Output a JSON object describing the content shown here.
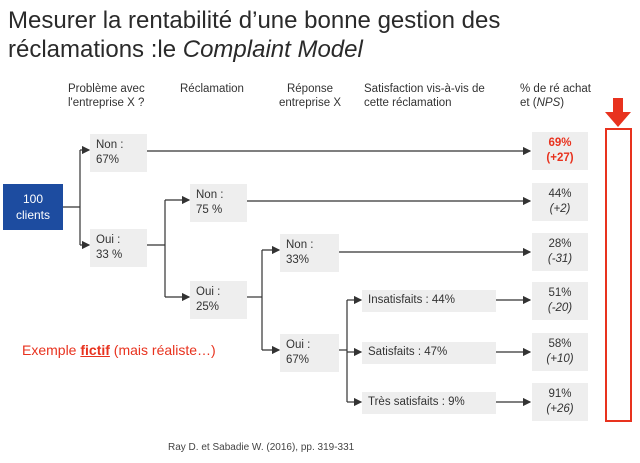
{
  "title": {
    "prefix": "Mesurer la rentabilité d’une bonne gestion des réclamations :le ",
    "emph": "Complaint Model"
  },
  "headers": {
    "probleme": "Problème avec l'entreprise X ?",
    "reclamation": "Réclamation",
    "reponse": "Réponse entreprise X",
    "satisfaction": "Satisfaction vis-à-vis de cette réclamation",
    "rachat_prefix": "% de ré achat et (",
    "rachat_emph": "NPS",
    "rachat_suffix": ")"
  },
  "start": {
    "value": "100",
    "label": "clients"
  },
  "nodes": {
    "non1_label": "Non :",
    "non1_value": "67%",
    "oui1_label": "Oui :",
    "oui1_value": "33 %",
    "non2_label": "Non :",
    "non2_value": "75 %",
    "oui2_label": "Oui :",
    "oui2_value": "25%",
    "non3_label": "Non :",
    "non3_value": "33%",
    "oui3_label": "Oui :",
    "oui3_value": "67%",
    "insat": "Insatisfaits : 44%",
    "sat": "Satisfaits : 47%",
    "tres": "Très satisfaits : 9%"
  },
  "outcomes": [
    {
      "pct": "69%",
      "nps": "(+27)"
    },
    {
      "pct": "44%",
      "nps": "(+2)"
    },
    {
      "pct": "28%",
      "nps": "(-31)"
    },
    {
      "pct": "51%",
      "nps": "(-20)"
    },
    {
      "pct": "58%",
      "nps": "(+10)"
    },
    {
      "pct": "91%",
      "nps": "(+26)"
    }
  ],
  "example": {
    "prefix": "Exemple ",
    "fict": "fictif",
    "suffix": " (mais réaliste…)"
  },
  "source": "Ray D. et Sabadie W. (2016), pp. 319-331",
  "colors": {
    "accent_red": "#e8321e",
    "start_blue": "#1d4ca0",
    "box_gray": "#eeeeee"
  }
}
